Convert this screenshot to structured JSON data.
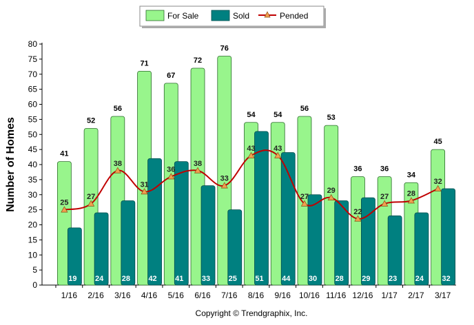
{
  "chart_data": {
    "type": "bar",
    "categories": [
      "1/16",
      "2/16",
      "3/16",
      "4/16",
      "5/16",
      "6/16",
      "7/16",
      "8/16",
      "9/16",
      "10/16",
      "11/16",
      "12/16",
      "1/17",
      "2/17",
      "3/17"
    ],
    "series": [
      {
        "name": "For Sale",
        "type": "bar",
        "color": "#98f58c",
        "values": [
          41,
          52,
          56,
          71,
          67,
          72,
          76,
          54,
          54,
          56,
          53,
          36,
          36,
          34,
          45
        ]
      },
      {
        "name": "Sold",
        "type": "bar",
        "color": "#008080",
        "values": [
          19,
          24,
          28,
          42,
          41,
          33,
          25,
          51,
          44,
          30,
          28,
          29,
          23,
          24,
          32
        ]
      },
      {
        "name": "Pended",
        "type": "line",
        "color": "#c00000",
        "marker_color": "#f0a050",
        "values": [
          25,
          27,
          38,
          31,
          36,
          38,
          33,
          43,
          43,
          27,
          29,
          22,
          27,
          28,
          32
        ]
      }
    ],
    "title": "",
    "xlabel": "",
    "ylabel": "Number of Homes",
    "ylim": [
      0,
      80
    ],
    "yticks": [
      "0",
      "5",
      "10",
      "15",
      "20",
      "25",
      "30",
      "35",
      "40",
      "45",
      "50",
      "55",
      "60",
      "65",
      "70",
      "75",
      "80"
    ],
    "grid": false,
    "legend_position": "top-center"
  },
  "footer": {
    "copyright": "Copyright © Trendgraphix, Inc."
  }
}
